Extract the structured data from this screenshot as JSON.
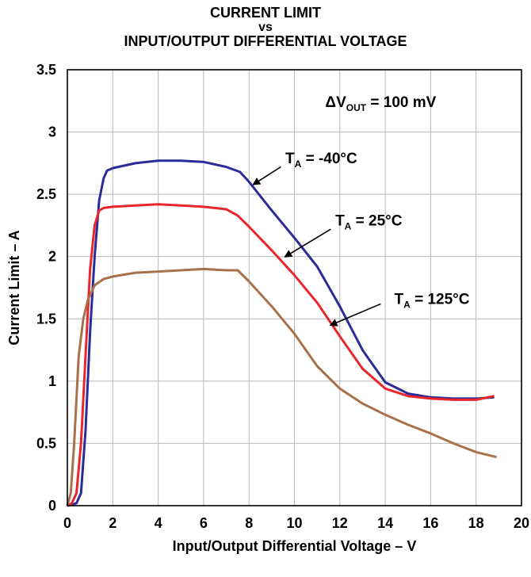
{
  "chart_data": {
    "type": "line",
    "title_lines": [
      "CURRENT LIMIT",
      "vs",
      "INPUT/OUTPUT DIFFERENTIAL VOLTAGE"
    ],
    "xlabel": "Input/Output Differential Voltage – V",
    "ylabel": "Current Limit – A",
    "xlim": [
      0,
      20
    ],
    "ylim": [
      0,
      3.5
    ],
    "x_ticks": [
      "0",
      "2",
      "4",
      "6",
      "8",
      "10",
      "12",
      "14",
      "16",
      "18",
      "20"
    ],
    "y_ticks": [
      "0",
      "0.5",
      "1",
      "1.5",
      "2",
      "2.5",
      "3",
      "3.5"
    ],
    "grid": true,
    "condition": {
      "prefix": "ΔV",
      "sub": "OUT",
      "suffix": " = 100 mV"
    },
    "series": [
      {
        "label": {
          "main": "T",
          "sub": "A",
          "rest": " = -40°C"
        },
        "color": "#2b2b9a",
        "points": [
          [
            0,
            0
          ],
          [
            0.4,
            0.02
          ],
          [
            0.6,
            0.1
          ],
          [
            0.8,
            0.6
          ],
          [
            1.0,
            1.4
          ],
          [
            1.2,
            2.0
          ],
          [
            1.4,
            2.45
          ],
          [
            1.6,
            2.63
          ],
          [
            1.75,
            2.69
          ],
          [
            2,
            2.71
          ],
          [
            3,
            2.75
          ],
          [
            4,
            2.77
          ],
          [
            5,
            2.77
          ],
          [
            6,
            2.76
          ],
          [
            7,
            2.72
          ],
          [
            7.6,
            2.68
          ],
          [
            8,
            2.6
          ],
          [
            9,
            2.37
          ],
          [
            10,
            2.15
          ],
          [
            11,
            1.92
          ],
          [
            12,
            1.6
          ],
          [
            13,
            1.25
          ],
          [
            14,
            0.99
          ],
          [
            15,
            0.9
          ],
          [
            16,
            0.87
          ],
          [
            17,
            0.86
          ],
          [
            18,
            0.86
          ],
          [
            18.8,
            0.87
          ]
        ]
      },
      {
        "label": {
          "main": "T",
          "sub": "A",
          "rest": " = 25°C"
        },
        "color": "#e8262b",
        "points": [
          [
            0,
            0
          ],
          [
            0.2,
            0.02
          ],
          [
            0.4,
            0.1
          ],
          [
            0.6,
            0.5
          ],
          [
            0.8,
            1.2
          ],
          [
            1.0,
            1.9
          ],
          [
            1.2,
            2.25
          ],
          [
            1.4,
            2.37
          ],
          [
            1.6,
            2.39
          ],
          [
            2,
            2.4
          ],
          [
            3,
            2.41
          ],
          [
            4,
            2.42
          ],
          [
            5,
            2.41
          ],
          [
            6,
            2.4
          ],
          [
            7,
            2.38
          ],
          [
            7.5,
            2.33
          ],
          [
            8,
            2.24
          ],
          [
            9,
            2.05
          ],
          [
            10,
            1.85
          ],
          [
            11,
            1.63
          ],
          [
            12,
            1.36
          ],
          [
            13,
            1.1
          ],
          [
            14,
            0.94
          ],
          [
            15,
            0.88
          ],
          [
            16,
            0.86
          ],
          [
            17,
            0.85
          ],
          [
            18,
            0.85
          ],
          [
            18.8,
            0.88
          ]
        ]
      },
      {
        "label": {
          "main": "T",
          "sub": "A",
          "rest": " = 125°C"
        },
        "color": "#a8714a",
        "points": [
          [
            0,
            0
          ],
          [
            0.15,
            0.1
          ],
          [
            0.3,
            0.5
          ],
          [
            0.5,
            1.2
          ],
          [
            0.7,
            1.5
          ],
          [
            0.9,
            1.65
          ],
          [
            1.2,
            1.77
          ],
          [
            1.6,
            1.82
          ],
          [
            2,
            1.84
          ],
          [
            3,
            1.87
          ],
          [
            4,
            1.88
          ],
          [
            5,
            1.89
          ],
          [
            6,
            1.9
          ],
          [
            7,
            1.89
          ],
          [
            7.5,
            1.89
          ],
          [
            8,
            1.8
          ],
          [
            9,
            1.6
          ],
          [
            10,
            1.38
          ],
          [
            11,
            1.12
          ],
          [
            12,
            0.94
          ],
          [
            13,
            0.82
          ],
          [
            14,
            0.73
          ],
          [
            15,
            0.65
          ],
          [
            16,
            0.58
          ],
          [
            17,
            0.5
          ],
          [
            18,
            0.43
          ],
          [
            18.9,
            0.39
          ]
        ]
      }
    ],
    "annotations": [
      {
        "series": 0,
        "text_at": [
          9.6,
          2.75
        ],
        "arrow_from": [
          9.4,
          2.72
        ],
        "arrow_to": [
          8.2,
          2.58
        ]
      },
      {
        "series": 1,
        "text_at": [
          11.8,
          2.25
        ],
        "arrow_from": [
          11.6,
          2.22
        ],
        "arrow_to": [
          9.6,
          2.0
        ]
      },
      {
        "series": 2,
        "text_at": [
          14.4,
          1.62
        ],
        "arrow_from": [
          13.8,
          1.62
        ],
        "arrow_to": [
          11.6,
          1.45
        ]
      }
    ]
  }
}
